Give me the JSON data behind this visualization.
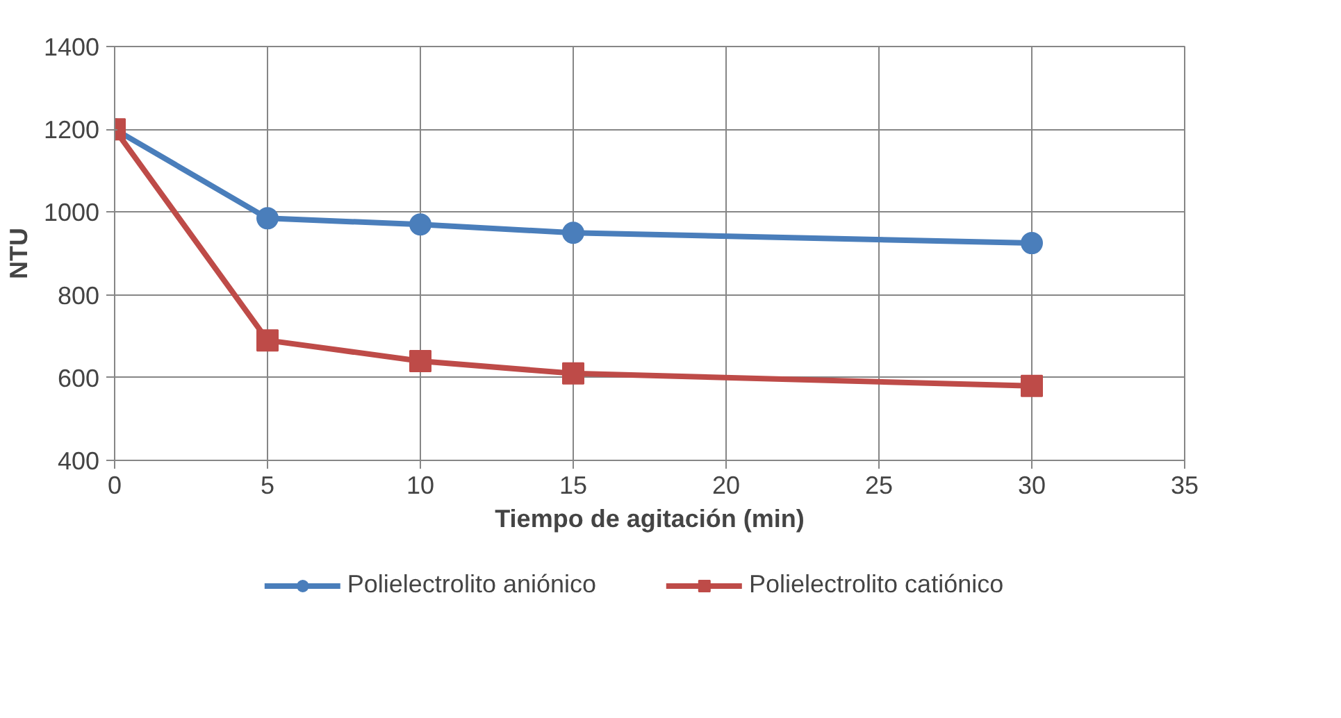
{
  "chart_data": {
    "type": "line",
    "xlabel": "Tiempo de agitación (min)",
    "ylabel": "NTU",
    "x": [
      0,
      5,
      10,
      15,
      30
    ],
    "series": [
      {
        "name": "Polielectrolito aniónico",
        "color": "#4a7ebb",
        "marker": "circle",
        "values": [
          1200,
          985,
          970,
          950,
          925
        ]
      },
      {
        "name": "Polielectrolito catiónico",
        "color": "#be4b48",
        "marker": "square",
        "values": [
          1200,
          690,
          640,
          610,
          580
        ]
      }
    ],
    "xlim": [
      0,
      35
    ],
    "xticks": [
      0,
      5,
      10,
      15,
      20,
      25,
      30,
      35
    ],
    "ylim": [
      400,
      1400
    ],
    "yticks": [
      400,
      600,
      800,
      1000,
      1200,
      1400
    ],
    "grid": true,
    "legend": "bottom",
    "line_style": "solid"
  }
}
